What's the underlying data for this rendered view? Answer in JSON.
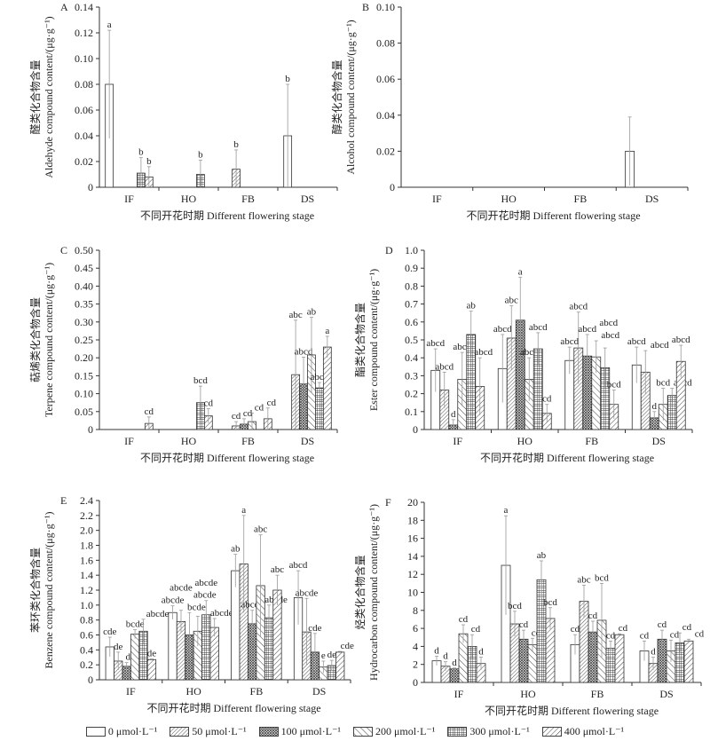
{
  "chart_data": [
    {
      "type": "bar",
      "panel_letter": "A",
      "categories": [
        "IF",
        "HO",
        "FB",
        "DS"
      ],
      "ylabel_cn": "醛类化合物含量",
      "ylabel": "Aldehyde compound content/(μg·g⁻¹)",
      "xlabel": "不同开花时期 Different flowering stage",
      "ylim": [
        0,
        0.14
      ],
      "yticks": [
        "0",
        "0.02",
        "0.04",
        "0.06",
        "0.08",
        "0.10",
        "0.12",
        "0.14"
      ],
      "series": [
        {
          "name": "0 μmol·L⁻¹",
          "values": [
            0.08,
            null,
            null,
            0.04
          ],
          "errors": [
            0.042,
            null,
            null,
            0.04
          ],
          "letters": [
            "a",
            null,
            null,
            "b"
          ]
        },
        {
          "name": "50 μmol·L⁻¹",
          "values": [
            null,
            null,
            0.014,
            null
          ],
          "errors": [
            null,
            null,
            0.015,
            null
          ],
          "letters": [
            null,
            null,
            "b",
            null
          ]
        },
        {
          "name": "100 μmol·L⁻¹",
          "values": [
            null,
            null,
            null,
            null
          ],
          "errors": [
            null,
            null,
            null,
            null
          ],
          "letters": [
            null,
            null,
            null,
            null
          ]
        },
        {
          "name": "200 μmol·L⁻¹",
          "values": [
            null,
            null,
            null,
            null
          ],
          "errors": [
            null,
            null,
            null,
            null
          ],
          "letters": [
            null,
            null,
            null,
            null
          ]
        },
        {
          "name": "300 μmol·L⁻¹",
          "values": [
            0.011,
            0.01,
            null,
            null
          ],
          "errors": [
            0.012,
            0.011,
            null,
            null
          ],
          "letters": [
            "b",
            "b",
            null,
            null
          ]
        },
        {
          "name": "400 μmol·L⁻¹",
          "values": [
            0.008,
            null,
            null,
            null
          ],
          "errors": [
            0.008,
            null,
            null,
            null
          ],
          "letters": [
            "b",
            null,
            null,
            null
          ]
        }
      ]
    },
    {
      "type": "bar",
      "panel_letter": "B",
      "categories": [
        "IF",
        "HO",
        "FB",
        "DS"
      ],
      "ylabel_cn": "醇类化合物含量",
      "ylabel": "Alcohol compound content/(μg·g⁻¹)",
      "xlabel": "不同开花时期 Different flowering stage",
      "ylim": [
        0,
        0.1
      ],
      "yticks": [
        "0",
        "0.02",
        "0.04",
        "0.06",
        "0.08",
        "0.10"
      ],
      "series": [
        {
          "name": "0 μmol·L⁻¹",
          "values": [
            null,
            null,
            null,
            0.02
          ],
          "errors": [
            null,
            null,
            null,
            0.019
          ],
          "letters": [
            null,
            null,
            null,
            null
          ]
        },
        {
          "name": "50 μmol·L⁻¹",
          "values": [
            null,
            null,
            null,
            null
          ],
          "errors": [
            null,
            null,
            null,
            null
          ],
          "letters": [
            null,
            null,
            null,
            null
          ]
        },
        {
          "name": "100 μmol·L⁻¹",
          "values": [
            null,
            null,
            null,
            null
          ],
          "errors": [
            null,
            null,
            null,
            null
          ],
          "letters": [
            null,
            null,
            null,
            null
          ]
        },
        {
          "name": "200 μmol·L⁻¹",
          "values": [
            null,
            null,
            null,
            null
          ],
          "errors": [
            null,
            null,
            null,
            null
          ],
          "letters": [
            null,
            null,
            null,
            null
          ]
        },
        {
          "name": "300 μmol·L⁻¹",
          "values": [
            null,
            null,
            null,
            null
          ],
          "errors": [
            null,
            null,
            null,
            null
          ],
          "letters": [
            null,
            null,
            null,
            null
          ]
        },
        {
          "name": "400 μmol·L⁻¹",
          "values": [
            null,
            null,
            null,
            null
          ],
          "errors": [
            null,
            null,
            null,
            null
          ],
          "letters": [
            null,
            null,
            null,
            null
          ]
        }
      ]
    },
    {
      "type": "bar",
      "panel_letter": "C",
      "categories": [
        "IF",
        "HO",
        "FB",
        "DS"
      ],
      "ylabel_cn": "萜烯类化合物含量",
      "ylabel": "Terpene compound content/(μg·g⁻¹)",
      "xlabel": "不同开花时期 Different flowering stage",
      "ylim": [
        0,
        0.5
      ],
      "yticks": [
        "0",
        "0.05",
        "0.10",
        "0.15",
        "0.20",
        "0.25",
        "0.30",
        "0.35",
        "0.40",
        "0.45",
        "0.50"
      ],
      "series": [
        {
          "name": "0 μmol·L⁻¹",
          "values": [
            null,
            null,
            null,
            null
          ],
          "errors": [
            null,
            null,
            null,
            null
          ],
          "letters": [
            null,
            null,
            null,
            null
          ]
        },
        {
          "name": "50 μmol·L⁻¹",
          "values": [
            null,
            null,
            0.01,
            0.153
          ],
          "errors": [
            null,
            null,
            0.012,
            0.152
          ],
          "letters": [
            null,
            null,
            "cd",
            "abc"
          ]
        },
        {
          "name": "100 μmol·L⁻¹",
          "values": [
            null,
            null,
            0.015,
            0.127
          ],
          "errors": [
            null,
            null,
            0.015,
            0.075
          ],
          "letters": [
            null,
            null,
            "cd",
            "abcd"
          ]
        },
        {
          "name": "200 μmol·L⁻¹",
          "values": [
            null,
            null,
            0.022,
            0.208
          ],
          "errors": [
            null,
            null,
            0.024,
            0.105
          ],
          "letters": [
            null,
            null,
            "cd",
            "ab"
          ]
        },
        {
          "name": "300 μmol·L⁻¹",
          "values": [
            null,
            0.075,
            null,
            0.116
          ],
          "errors": [
            null,
            0.046,
            null,
            0.015
          ],
          "letters": [
            null,
            "bcd",
            null,
            "abcd"
          ]
        },
        {
          "name": "400 μmol·L⁻¹",
          "values": [
            0.017,
            0.038,
            0.03,
            0.23
          ],
          "errors": [
            0.018,
            0.02,
            0.03,
            0.03
          ],
          "letters": [
            "cd",
            "cd",
            "cd",
            "a"
          ]
        }
      ]
    },
    {
      "type": "bar",
      "panel_letter": "D",
      "categories": [
        "IF",
        "HO",
        "FB",
        "DS"
      ],
      "ylabel_cn": "酯类化合物含量",
      "ylabel": "Ester compound content/(μg·g⁻¹)",
      "xlabel": "不同开花时期 Different flowering stage",
      "ylim": [
        0,
        1.0
      ],
      "yticks": [
        "0",
        "0.1",
        "0.2",
        "0.3",
        "0.4",
        "0.5",
        "0.6",
        "0.7",
        "0.8",
        "0.9",
        "1.0"
      ],
      "series": [
        {
          "name": "0 μmol·L⁻¹",
          "values": [
            0.33,
            0.34,
            0.385,
            0.36
          ],
          "errors": [
            0.12,
            0.19,
            0.075,
            0.1
          ],
          "letters": [
            "abcd",
            "abcd",
            "abcd",
            "abcd"
          ]
        },
        {
          "name": "50 μmol·L⁻¹",
          "values": [
            0.22,
            0.51,
            0.455,
            0.32
          ],
          "errors": [
            0.1,
            0.18,
            0.2,
            0.12
          ],
          "letters": [
            "abcd",
            "abc",
            "abcd",
            "abcd"
          ]
        },
        {
          "name": "100 μmol·L⁻¹",
          "values": [
            0.025,
            0.61,
            0.41,
            0.065
          ],
          "errors": [
            0.03,
            0.24,
            0.12,
            0.035
          ],
          "letters": [
            "d",
            "a",
            "abcd",
            "d"
          ]
        },
        {
          "name": "200 μmol·L⁻¹",
          "values": [
            0.28,
            0.28,
            0.405,
            0.14
          ],
          "errors": [
            0.15,
            0.12,
            0.09,
            0.09
          ],
          "letters": [
            "abcd",
            "abcd",
            "abcd",
            "bcd"
          ]
        },
        {
          "name": "300 μmol·L⁻¹",
          "values": [
            0.53,
            0.45,
            0.345,
            0.19
          ],
          "errors": [
            0.13,
            0.09,
            0.11,
            0.04
          ],
          "letters": [
            "ab",
            "abcd",
            "abcd",
            "abcd"
          ]
        },
        {
          "name": "400 μmol·L⁻¹",
          "values": [
            0.24,
            0.09,
            0.14,
            0.38
          ],
          "errors": [
            0.16,
            0.05,
            0.08,
            0.09
          ],
          "letters": [
            "abcd",
            "cd",
            "bcd",
            "abcd"
          ]
        }
      ]
    },
    {
      "type": "bar",
      "panel_letter": "E",
      "categories": [
        "IF",
        "HO",
        "FB",
        "DS"
      ],
      "ylabel_cn": "苯环类化合物含量",
      "ylabel": "Benzene compound content/(μg·g⁻¹)",
      "xlabel": "不同开花时期 Different flowering stage",
      "ylim": [
        0,
        2.4
      ],
      "yticks": [
        "0",
        "0.2",
        "0.4",
        "0.6",
        "0.8",
        "1.0",
        "1.2",
        "1.4",
        "1.6",
        "1.8",
        "2.0",
        "2.2",
        "2.4"
      ],
      "series": [
        {
          "name": "0 μmol·L⁻¹",
          "values": [
            0.44,
            0.9,
            1.46,
            1.1
          ],
          "errors": [
            0.13,
            0.09,
            0.22,
            0.36
          ],
          "letters": [
            "cde",
            "abcde",
            "ab",
            "abcd"
          ]
        },
        {
          "name": "50 μmol·L⁻¹",
          "values": [
            0.25,
            0.78,
            1.55,
            0.64
          ],
          "errors": [
            0.12,
            0.15,
            0.65,
            0.45
          ],
          "letters": [
            "de",
            "abcde",
            "a",
            "abcde"
          ]
        },
        {
          "name": "100 μmol·L⁻¹",
          "values": [
            0.18,
            0.6,
            0.75,
            0.37
          ],
          "errors": [
            0.05,
            0.3,
            0.18,
            0.25
          ],
          "letters": [
            "de",
            "bcde",
            "abcde",
            "cde"
          ]
        },
        {
          "name": "200 μmol·L⁻¹",
          "values": [
            0.61,
            0.65,
            1.26,
            0.17
          ],
          "errors": [
            0.06,
            0.2,
            0.68,
            0.08
          ],
          "letters": [
            "bcde",
            "abcde",
            "abc",
            "e"
          ]
        },
        {
          "name": "300 μmol·L⁻¹",
          "values": [
            0.65,
            0.87,
            0.83,
            0.19
          ],
          "errors": [
            0.16,
            0.19,
            0.17,
            0.07
          ],
          "letters": [
            "abcde",
            "abcde",
            "abcde",
            "de"
          ]
        },
        {
          "name": "400 μmol·L⁻¹",
          "values": [
            0.27,
            0.7,
            1.2,
            0.37
          ],
          "errors": [
            0.01,
            0.12,
            0.2,
            0.01
          ],
          "letters": [
            "de",
            "abcde",
            "abc",
            "cde"
          ]
        }
      ]
    },
    {
      "type": "bar",
      "panel_letter": "F",
      "categories": [
        "IF",
        "HO",
        "FB",
        "DS"
      ],
      "ylabel_cn": "烃类化合物含量",
      "ylabel": "Hydrocarbon compound content/(μg·g⁻¹)",
      "xlabel": "不同开花时期 Different flowering stage",
      "ylim": [
        0,
        20
      ],
      "yticks": [
        "0",
        "2",
        "4",
        "6",
        "8",
        "10",
        "12",
        "14",
        "16",
        "18",
        "20"
      ],
      "series": [
        {
          "name": "0 μmol·L⁻¹",
          "values": [
            2.4,
            13.0,
            4.2,
            3.5
          ],
          "errors": [
            0.5,
            5.5,
            1.1,
            1.1
          ],
          "letters": [
            "d",
            "a",
            "cd",
            "cd"
          ]
        },
        {
          "name": "50 μmol·L⁻¹",
          "values": [
            1.8,
            6.5,
            9.0,
            2.1
          ],
          "errors": [
            0.5,
            1.4,
            1.8,
            0.7
          ],
          "letters": [
            "d",
            "bcd",
            "abc",
            "d"
          ]
        },
        {
          "name": "100 μmol·L⁻¹",
          "values": [
            1.5,
            4.8,
            5.6,
            4.8
          ],
          "errors": [
            0.1,
            1.0,
            1.2,
            1.0
          ],
          "letters": [
            "d",
            "cd",
            "cd",
            "cd"
          ]
        },
        {
          "name": "200 μmol·L⁻¹",
          "values": [
            5.4,
            4.2,
            6.9,
            3.5
          ],
          "errors": [
            1.0,
            0.7,
            4.1,
            1.2
          ],
          "letters": [
            "cd",
            "cd",
            "bcd",
            "cd"
          ]
        },
        {
          "name": "300 μmol·L⁻¹",
          "values": [
            4.0,
            11.4,
            3.8,
            4.4
          ],
          "errors": [
            1.3,
            2.1,
            0.8,
            1.1
          ],
          "letters": [
            "cd",
            "ab",
            "cd",
            "cd"
          ]
        },
        {
          "name": "400 μmol·L⁻¹",
          "values": [
            2.1,
            7.1,
            5.3,
            4.6
          ],
          "errors": [
            0.7,
            1.2,
            0.1,
            0.2
          ],
          "letters": [
            "d",
            "bcd",
            "cd",
            "cd"
          ]
        }
      ]
    }
  ],
  "legend": {
    "placement": "bottom",
    "items": [
      {
        "label": "0 μmol·L⁻¹",
        "pattern": "empty"
      },
      {
        "label": "50 μmol·L⁻¹",
        "pattern": "dense-diagonal"
      },
      {
        "label": "100 μmol·L⁻¹",
        "pattern": "crosshatch"
      },
      {
        "label": "200 μmol·L⁻¹",
        "pattern": "back-diagonal"
      },
      {
        "label": "300 μmol·L⁻¹",
        "pattern": "grid"
      },
      {
        "label": "400 μmol·L⁻¹",
        "pattern": "wide-diagonal"
      }
    ]
  },
  "colors": {
    "ink": "#333333",
    "error_bar": "#999999",
    "background": "#ffffff"
  }
}
